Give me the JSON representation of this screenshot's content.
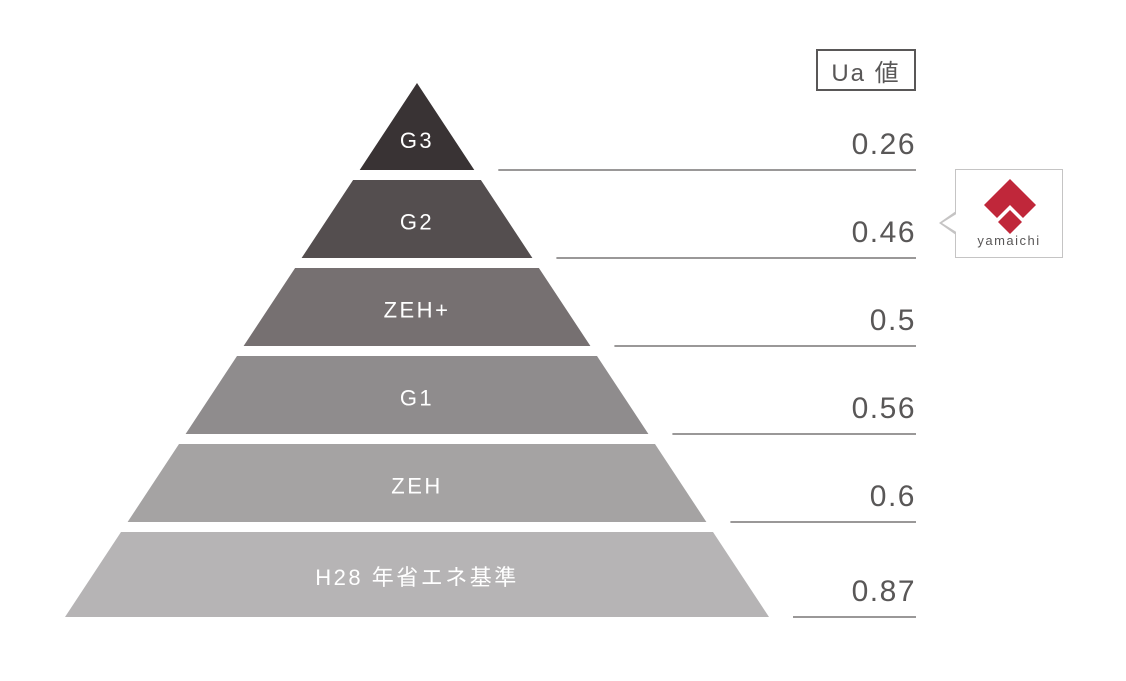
{
  "chart_data": {
    "type": "pyramid",
    "value_header": "Ua 値",
    "tiers": [
      {
        "label": "G3",
        "ua_value": "0.26",
        "color": "#393334"
      },
      {
        "label": "G2",
        "ua_value": "0.46",
        "color": "#544e4f"
      },
      {
        "label": "ZEH+",
        "ua_value": "0.5",
        "color": "#767071"
      },
      {
        "label": "G1",
        "ua_value": "0.56",
        "color": "#8f8c8d"
      },
      {
        "label": "ZEH",
        "ua_value": "0.6",
        "color": "#a5a3a3"
      },
      {
        "label": "H28 年省エネ基準",
        "ua_value": "0.87",
        "color": "#b6b4b5"
      }
    ],
    "styles": {
      "tier_label_color": "#ffffff",
      "value_text_color": "#595757",
      "value_line_color": "#8c8a8a"
    },
    "layout_hint": "tiers ordered best (top, lowest Ua) to baseline standard (bottom, highest Ua); each tier bottom edge extends as an underline beneath its Ua value"
  },
  "badge": {
    "brand": "yamaichi",
    "logo_color": "#c0273a",
    "points_at": "0.46"
  }
}
